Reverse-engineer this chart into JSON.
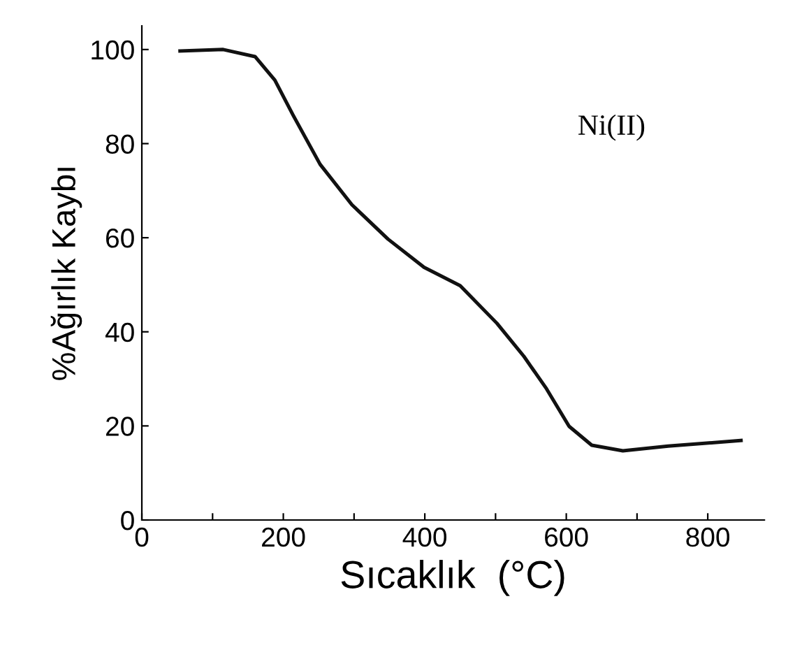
{
  "chart_data": {
    "type": "line",
    "xlabel": "Sıcaklık  (°C)",
    "ylabel": "%Ağırlık Kaybı",
    "annotations": [
      "Ni(II)"
    ],
    "x": [
      54,
      115,
      160,
      188,
      214,
      252,
      297,
      348,
      399,
      450,
      502,
      540,
      572,
      604,
      636,
      680,
      744,
      847
    ],
    "series": [
      {
        "color": "#111111",
        "values": [
          99.7,
          100,
          98.5,
          93.5,
          86,
          75.6,
          67,
          59.7,
          53.7,
          49.8,
          41.8,
          34.8,
          27.9,
          19.9,
          15.9,
          14.7,
          15.7,
          16.9
        ]
      }
    ],
    "xlim": [
      0,
      880
    ],
    "ylim": [
      0,
      105
    ],
    "xticks": [
      0,
      {
        "value": 100,
        "label": null
      },
      200,
      {
        "value": 300,
        "label": null
      },
      400,
      {
        "value": 500,
        "label": null
      },
      600,
      {
        "value": 700,
        "label": null
      },
      800
    ],
    "yticks": [
      0,
      20,
      40,
      60,
      80,
      100
    ],
    "grid": false,
    "legend": false,
    "marker": "none",
    "line_style": "solid"
  }
}
